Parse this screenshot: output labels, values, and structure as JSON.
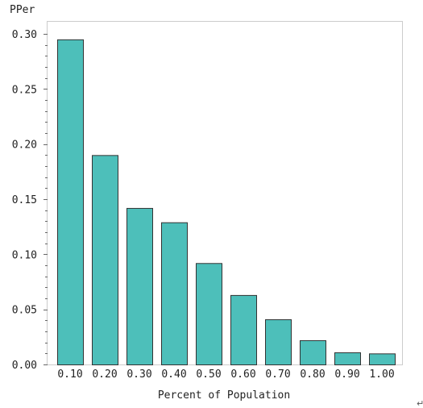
{
  "chart_data": {
    "type": "bar",
    "title": "",
    "xlabel": "Percent of Population",
    "ylabel": "PPer",
    "categories": [
      "0.10",
      "0.20",
      "0.30",
      "0.40",
      "0.50",
      "0.60",
      "0.70",
      "0.80",
      "0.90",
      "1.00"
    ],
    "values": [
      0.295,
      0.19,
      0.142,
      0.129,
      0.092,
      0.063,
      0.041,
      0.022,
      0.011,
      0.01
    ],
    "ylim": [
      0,
      0.3
    ],
    "yticks": [
      0.0,
      0.05,
      0.1,
      0.15,
      0.2,
      0.25,
      0.3
    ],
    "ytick_labels": [
      "0.00",
      "0.05",
      "0.10",
      "0.15",
      "0.20",
      "0.25",
      "0.30"
    ],
    "grid": false,
    "bar_color": "#4dbfba",
    "bar_edge_color": "#333333"
  },
  "footer_mark": "↵"
}
